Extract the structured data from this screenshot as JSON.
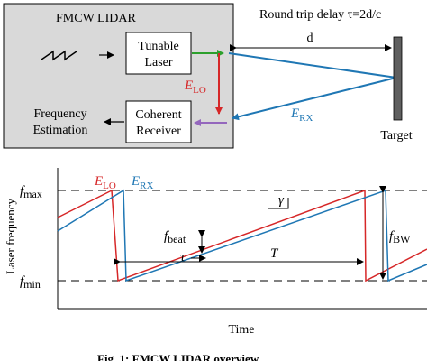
{
  "colors": {
    "lo": "#d62728",
    "rx": "#1f77b4",
    "green": "#2ca02c",
    "purple": "#9467bd",
    "box_fill": "#d9d9d9",
    "target": "#5f5f5f"
  },
  "top": {
    "system_title": "FMCW LIDAR",
    "laser_label_1": "Tunable",
    "laser_label_2": "Laser",
    "receiver_label_1": "Coherent",
    "receiver_label_2": "Receiver",
    "freq_est_1": "Frequency",
    "freq_est_2": "Estimation",
    "delay_text": "Round trip delay τ=2d/c",
    "distance": "d",
    "target": "Target",
    "e_lo": "E",
    "e_lo_sub": "LO",
    "e_rx": "E",
    "e_rx_sub": "RX"
  },
  "bottom": {
    "ylabel": "Laser frequency",
    "xlabel": "Time",
    "f_max": "f",
    "f_max_sub": "max",
    "f_min": "f",
    "f_min_sub": "min",
    "f_beat": "f",
    "f_beat_sub": "beat",
    "f_bw": "f",
    "f_bw_sub": "BW",
    "tau": "τ",
    "gamma": "γ",
    "period": "T",
    "e_lo": "E",
    "e_lo_sub": "LO",
    "e_rx": "E",
    "e_rx_sub": "RX"
  },
  "caption": "Fig. 1: FMCW LIDAR overview"
}
